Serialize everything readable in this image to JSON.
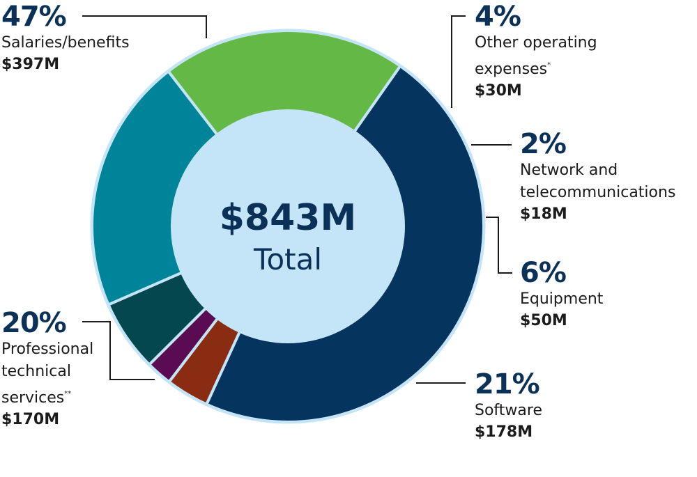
{
  "chart_data": {
    "type": "pie",
    "center": {
      "value": "$843M",
      "label": "Total"
    },
    "total": 843,
    "slices": [
      {
        "name": "Salaries/benefits",
        "note": "",
        "percent": "47%",
        "amount": "$397M",
        "value": 397,
        "color": "#05345e"
      },
      {
        "name": "Other operating expenses",
        "note": "*",
        "percent": "4%",
        "amount": "$30M",
        "value": 30,
        "color": "#8a2c12"
      },
      {
        "name": "Network and telecommunications",
        "note": "",
        "percent": "2%",
        "amount": "$18M",
        "value": 18,
        "color": "#5a0b52"
      },
      {
        "name": "Equipment",
        "note": "",
        "percent": "6%",
        "amount": "$50M",
        "value": 50,
        "color": "#04474f"
      },
      {
        "name": "Software",
        "note": "",
        "percent": "21%",
        "amount": "$178M",
        "value": 178,
        "color": "#00849a"
      },
      {
        "name": "Professional technical services",
        "note": "**",
        "percent": "20%",
        "amount": "$170M",
        "value": 170,
        "color": "#63b846"
      }
    ],
    "colors": {
      "hole": "#c4e4f7",
      "separator": "#c4e4f7",
      "leader": "#1b1b1b",
      "percent_text": "#0b3158"
    }
  },
  "labels": {
    "salaries": {
      "percent": "47%",
      "line1": "Salaries/benefits",
      "amount": "$397M"
    },
    "other": {
      "percent": "4%",
      "line1": "Other operating",
      "line2": "expenses",
      "note": "*",
      "amount": "$30M"
    },
    "network": {
      "percent": "2%",
      "line1": "Network and",
      "line2": "telecommunications",
      "amount": "$18M"
    },
    "equipment": {
      "percent": "6%",
      "line1": "Equipment",
      "amount": "$50M"
    },
    "software": {
      "percent": "21%",
      "line1": "Software",
      "amount": "$178M"
    },
    "professional": {
      "percent": "20%",
      "line1": "Professional",
      "line2": "technical",
      "line3": "services",
      "note": "**",
      "amount": "$170M"
    }
  }
}
